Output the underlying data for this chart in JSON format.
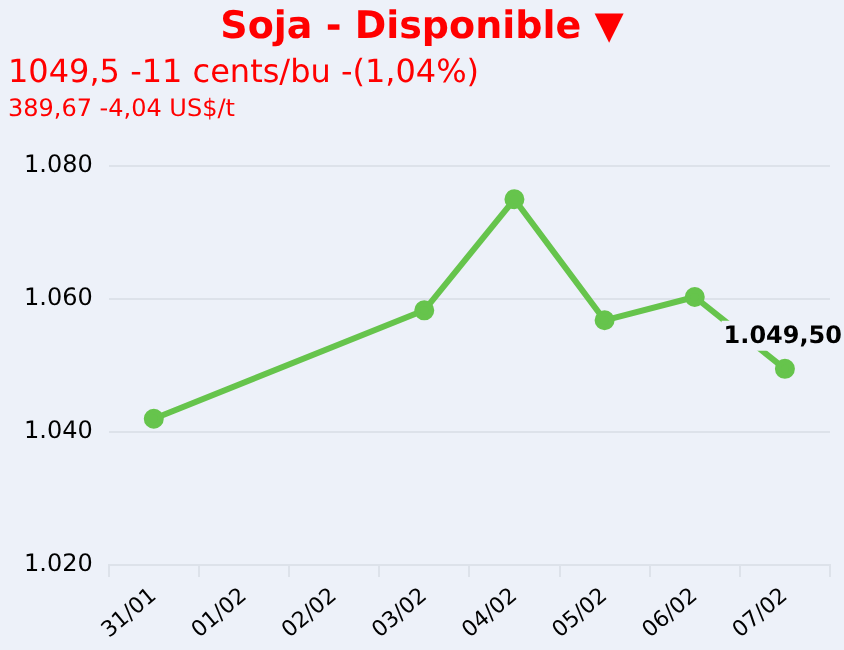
{
  "chart_data": {
    "type": "line",
    "title": "Soja - Disponible ▼",
    "subtitle": "1049,5 -11 cents/bu -(1,04%)",
    "annotations": [
      "389,67 -4,04 US$/t"
    ],
    "categories": [
      "31/01",
      "01/02",
      "02/02",
      "03/02",
      "04/02",
      "05/02",
      "06/02",
      "07/02"
    ],
    "series": [
      {
        "color": "#66c44c",
        "values": [
          1042,
          null,
          null,
          1058.3,
          1075,
          1056.8,
          1060.3,
          1049.5
        ],
        "value_labels": [
          null,
          null,
          null,
          null,
          null,
          null,
          null,
          "1.049,50"
        ]
      }
    ],
    "ylim": [
      1020,
      1080
    ],
    "yticks": [
      {
        "value": 1020,
        "label": "1.020"
      },
      {
        "value": 1040,
        "label": "1.040"
      },
      {
        "value": 1060,
        "label": "1.060"
      },
      {
        "value": 1080,
        "label": "1.080"
      }
    ],
    "grid": "y",
    "legend": false,
    "marker": "circle",
    "line_style": "solid"
  }
}
